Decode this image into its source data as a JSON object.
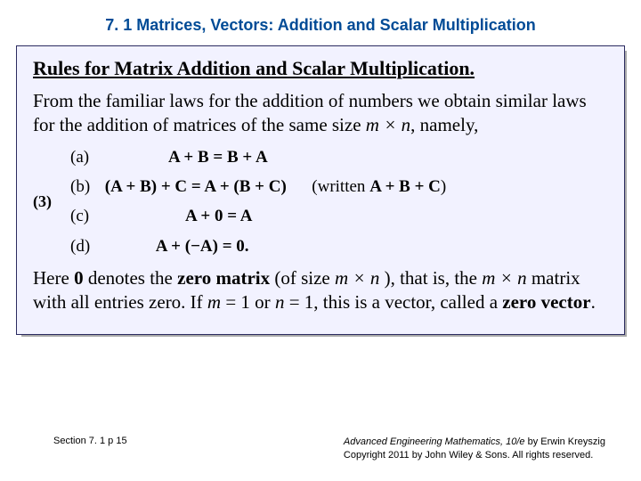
{
  "colors": {
    "header_text": "#004b96",
    "box_bg": "#f2f2ff",
    "box_border": "#2b2b60",
    "shadow": "#a9a9a9",
    "page_bg": "#ffffff",
    "text": "#000000"
  },
  "typography": {
    "header_family": "Arial",
    "header_size_pt": 14,
    "header_weight": "bold",
    "body_family": "Georgia",
    "body_size_pt": 16,
    "eq_family": "Times New Roman",
    "footer_family": "Arial",
    "footer_size_pt": 8
  },
  "header": {
    "title": "7. 1 Matrices, Vectors:  Addition and Scalar Multiplication"
  },
  "box": {
    "title": "Rules for Matrix Addition and Scalar Multiplication.",
    "intro_part1": "From the familiar laws for the addition of numbers we obtain similar laws for the addition of matrices of the same size ",
    "intro_mn": "m × n",
    "intro_part2": ", namely,",
    "eq_marker": "(3)",
    "equations": {
      "a_label": "(a)",
      "a_text": "A + B = B + A",
      "b_label": "(b)",
      "b_lhs": "(A + B) + C = A + (B + C)",
      "b_note": "(written A + B + C)",
      "c_label": "(c)",
      "c_text": "A + 0 = A",
      "d_label": "(d)",
      "d_text": "A + (−A) = 0."
    },
    "closing_1a": "Here ",
    "closing_zero1": "0",
    "closing_1b": " denotes the ",
    "closing_zm": "zero matrix",
    "closing_1c": " (of size ",
    "closing_mn2": "m × n",
    "closing_1d": " ), that is, the ",
    "closing_mn3": "m × n",
    "closing_1e": " matrix with all entries zero. If ",
    "closing_m": "m",
    "closing_eq1": " = 1 or ",
    "closing_n": "n",
    "closing_eq2": " = 1, this is a vector, called a ",
    "closing_zv": "zero vector",
    "closing_period": "."
  },
  "footer": {
    "left": "Section 7. 1  p 15",
    "right_title": "Advanced Engineering Mathematics, 10/e",
    "right_by": " by Erwin Kreyszig",
    "right_copy": "Copyright 2011 by John Wiley & Sons. All rights reserved."
  }
}
